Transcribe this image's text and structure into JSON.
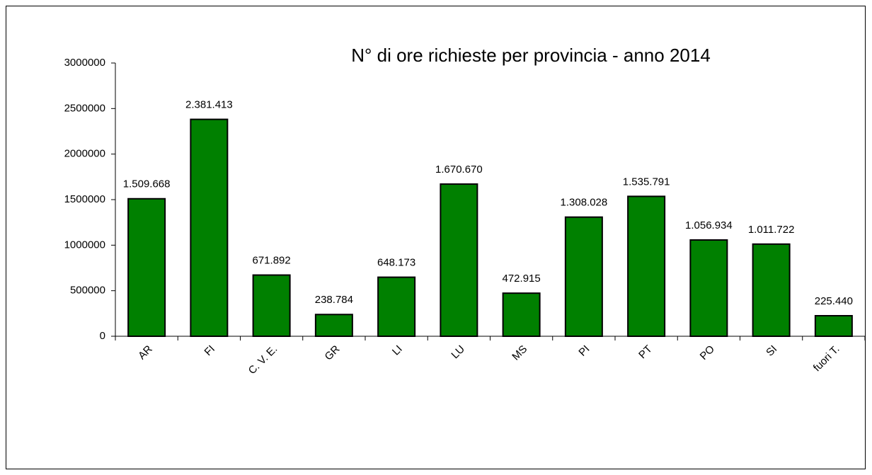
{
  "chart_data": {
    "type": "bar",
    "title": "N° di ore richieste per provincia - anno 2014",
    "categories": [
      "AR",
      "FI",
      "C. V. E.",
      "GR",
      "LI",
      "LU",
      "MS",
      "PI",
      "PT",
      "PO",
      "SI",
      "fuori T."
    ],
    "values": [
      1509668,
      2381413,
      671892,
      238784,
      648173,
      1670670,
      472915,
      1308028,
      1535791,
      1056934,
      1011722,
      225440
    ],
    "value_labels": [
      "1.509.668",
      "2.381.413",
      "671.892",
      "238.784",
      "648.173",
      "1.670.670",
      "472.915",
      "1.308.028",
      "1.535.791",
      "1.056.934",
      "1.011.722",
      "225.440"
    ],
    "color": "#008000",
    "ylim": [
      0,
      3000000
    ],
    "yticks": [
      0,
      500000,
      1000000,
      1500000,
      2000000,
      2500000,
      3000000
    ],
    "grid": false
  }
}
